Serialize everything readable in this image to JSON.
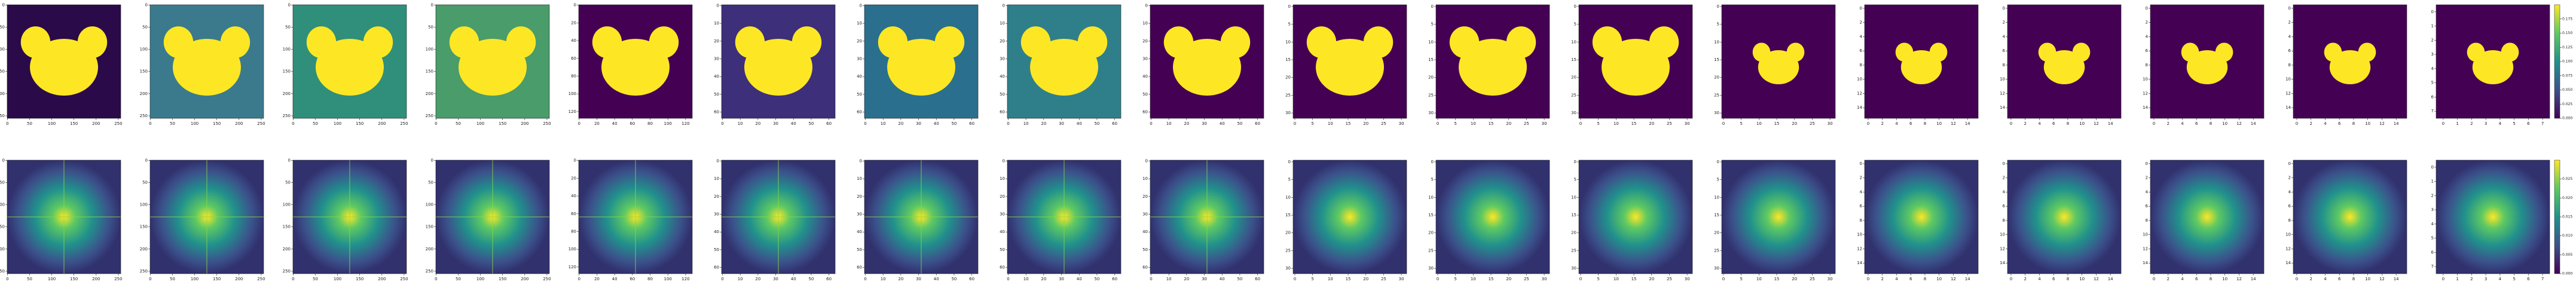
{
  "chart_data": {
    "type": "image-grid",
    "columns": [
      {
        "size": 256,
        "ticks": [
          0,
          50,
          100,
          150,
          200,
          250
        ]
      },
      {
        "size": 256,
        "ticks": [
          0,
          50,
          100,
          150,
          200,
          250
        ]
      },
      {
        "size": 256,
        "ticks": [
          0,
          50,
          100,
          150,
          200,
          250
        ]
      },
      {
        "size": 256,
        "ticks": [
          0,
          50,
          100,
          150,
          200,
          250
        ]
      },
      {
        "size": 128,
        "ticks": [
          0,
          20,
          40,
          60,
          80,
          100,
          120
        ]
      },
      {
        "size": 64,
        "ticks": [
          0,
          10,
          20,
          30,
          40,
          50,
          60
        ]
      },
      {
        "size": 64,
        "ticks": [
          0,
          10,
          20,
          30,
          40,
          50,
          60
        ]
      },
      {
        "size": 64,
        "ticks": [
          0,
          10,
          20,
          30,
          40,
          50,
          60
        ]
      },
      {
        "size": 64,
        "ticks": [
          0,
          10,
          20,
          30,
          40,
          50,
          60
        ]
      },
      {
        "size": 32,
        "ticks": [
          0,
          5,
          10,
          15,
          20,
          25,
          30
        ]
      },
      {
        "size": 32,
        "ticks": [
          0,
          5,
          10,
          15,
          20,
          25,
          30
        ]
      },
      {
        "size": 32,
        "ticks": [
          0,
          5,
          10,
          15,
          20,
          25,
          30
        ]
      },
      {
        "size": 32,
        "ticks": [
          0,
          5,
          10,
          15,
          20,
          25,
          30
        ]
      },
      {
        "size": 16,
        "ticks": [
          0,
          2,
          4,
          6,
          8,
          10,
          12,
          14
        ]
      },
      {
        "size": 16,
        "ticks": [
          0,
          2,
          4,
          6,
          8,
          10,
          12,
          14
        ]
      },
      {
        "size": 16,
        "ticks": [
          0,
          2,
          4,
          6,
          8,
          10,
          12,
          14
        ]
      },
      {
        "size": 16,
        "ticks": [
          0,
          2,
          4,
          6,
          8,
          10,
          12,
          14
        ]
      },
      {
        "size": 8,
        "ticks": [
          0,
          1,
          2,
          3,
          4,
          5,
          6,
          7
        ]
      }
    ],
    "colorbars": [
      {
        "lim": [
          0,
          0.2
        ],
        "ticks": [
          {
            "value": 0,
            "label": "0.000"
          },
          {
            "value": 0.025,
            "label": "0.025"
          },
          {
            "value": 0.05,
            "label": "0.050"
          },
          {
            "value": 0.075,
            "label": "0.075"
          },
          {
            "value": 0.1,
            "label": "0.100"
          },
          {
            "value": 0.125,
            "label": "0.125"
          },
          {
            "value": 0.15,
            "label": "0.150"
          },
          {
            "value": 0.175,
            "label": "0.175"
          }
        ]
      },
      {
        "lim": [
          0,
          0.03
        ],
        "ticks": [
          {
            "value": 0,
            "label": "0.000"
          },
          {
            "value": 0.005,
            "label": "0.005"
          },
          {
            "value": 0.01,
            "label": "0.010"
          },
          {
            "value": 0.015,
            "label": "0.015"
          },
          {
            "value": 0.02,
            "label": "0.020"
          },
          {
            "value": 0.025,
            "label": "0.025"
          }
        ]
      }
    ]
  }
}
